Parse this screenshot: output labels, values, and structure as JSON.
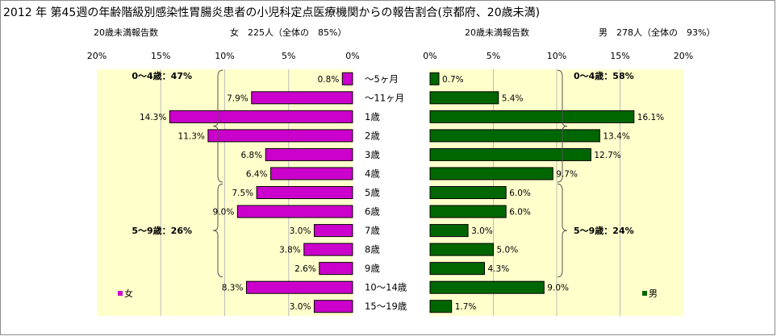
{
  "title": "2012 年 第45週の年齢階級別感染性胃腸炎患者の小児科定点医療機関からの報告割合(京都府、20歳未満)",
  "colors": {
    "female": "#cc00cc",
    "male": "#006600",
    "plot_background": "#ffffcc",
    "frame": "#8c8c8c"
  },
  "chart_data": [
    {
      "type": "bar",
      "orientation": "horizontal",
      "direction": "right-to-left",
      "header_left": "20歳未満報告数",
      "header_right": "女　225人（全体の　85%）",
      "legend": "女",
      "legend_position": "bottom-left",
      "xlim": [
        0,
        20
      ],
      "ticks": [
        "0%",
        "5%",
        "10%",
        "15%",
        "20%"
      ],
      "tick_values": [
        0,
        5,
        10,
        15,
        20
      ],
      "categories": [
        "～5ヶ月",
        "～11ヶ月",
        "1歳",
        "2歳",
        "3歳",
        "4歳",
        "5歳",
        "6歳",
        "7歳",
        "8歳",
        "9歳",
        "10～14歳",
        "15～19歳"
      ],
      "values": [
        0.8,
        7.9,
        14.3,
        11.3,
        6.8,
        6.4,
        7.5,
        9.0,
        3.0,
        3.8,
        2.6,
        8.3,
        3.0
      ],
      "labels": [
        "0.8%",
        "7.9%",
        "14.3%",
        "11.3%",
        "6.8%",
        "6.4%",
        "7.5%",
        "9.0%",
        "3.0%",
        "3.8%",
        "2.6%",
        "8.3%",
        "3.0%"
      ],
      "groups": [
        {
          "label": "0～4歳：47%",
          "from": 0,
          "to": 5
        },
        {
          "label": "5～9歳：26%",
          "from": 6,
          "to": 10
        }
      ]
    },
    {
      "type": "bar",
      "orientation": "horizontal",
      "direction": "left-to-right",
      "header_left": "20歳未満報告数",
      "header_right": "男　278人（全体の　93%）",
      "legend": "男",
      "legend_position": "bottom-right",
      "xlim": [
        0,
        20
      ],
      "ticks": [
        "0%",
        "5%",
        "10%",
        "15%",
        "20%"
      ],
      "tick_values": [
        0,
        5,
        10,
        15,
        20
      ],
      "categories": [
        "～5ヶ月",
        "～11ヶ月",
        "1歳",
        "2歳",
        "3歳",
        "4歳",
        "5歳",
        "6歳",
        "7歳",
        "8歳",
        "9歳",
        "10～14歳",
        "15～19歳"
      ],
      "values": [
        0.7,
        5.4,
        16.1,
        13.4,
        12.7,
        9.7,
        6.0,
        6.0,
        3.0,
        5.0,
        4.3,
        9.0,
        1.7
      ],
      "labels": [
        "0.7%",
        "5.4%",
        "16.1%",
        "13.4%",
        "12.7%",
        "9.7%",
        "6.0%",
        "6.0%",
        "3.0%",
        "5.0%",
        "4.3%",
        "9.0%",
        "1.7%"
      ],
      "groups": [
        {
          "label": "0～4歳：58%",
          "from": 0,
          "to": 5
        },
        {
          "label": "5～9歳：24%",
          "from": 6,
          "to": 10
        }
      ]
    }
  ]
}
